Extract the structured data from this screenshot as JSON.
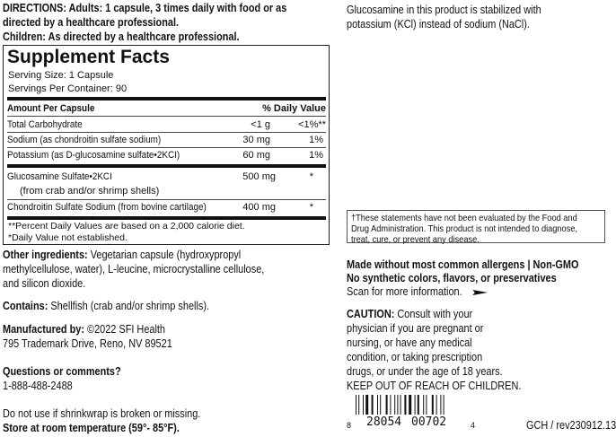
{
  "directions": {
    "line1": "DIRECTIONS: Adults: 1 capsule, 3 times daily with food or as",
    "line2": "directed by a healthcare professional.",
    "line3": "Children: As directed by a healthcare professional."
  },
  "facts": {
    "title": "Supplement Facts",
    "serving_size": "Serving Size: 1 Capsule",
    "servings_per_container": "Servings Per Container: 90",
    "header_amount": "Amount Per Capsule",
    "header_dv": "% Daily Value",
    "rows": [
      {
        "name": "Total Carbohydrate",
        "amount": "<1 g",
        "dv": "<1%**"
      },
      {
        "name": "Sodium (as chondroitin sulfate sodium)",
        "amount": "30 mg",
        "dv": "1%"
      },
      {
        "name": "Potassium (as D-glucosamine sulfate•2KCI)",
        "amount": "60 mg",
        "dv": "1%"
      },
      {
        "name": "Glucosamine Sulfate•2KCI",
        "sub": "(from crab and/or shrimp shells)",
        "amount": "500 mg",
        "dv": "*"
      },
      {
        "name": "Chondroitin Sulfate Sodium (from bovine cartilage)",
        "amount": "400 mg",
        "dv": "*"
      }
    ],
    "footnote1": "**Percent Daily Values are based on a 2,000 calorie diet.",
    "footnote2": "*Daily Value not established."
  },
  "other": {
    "label": "Other ingredients:",
    "line1": " Vegetarian capsule (hydroxypropyl",
    "line2": "methylcellulose, water), L-leucine, microcrystalline cellulose,",
    "line3": "and silicon dioxide."
  },
  "contains": {
    "label": "Contains:",
    "text": " Shellfish (crab and/or shrimp shells)."
  },
  "manufacturer": {
    "label": "Manufactured by:",
    "text": " ©2022 SFI Health",
    "address": "795 Trademark Drive, Reno, NV 89521"
  },
  "questions": {
    "label": "Questions or comments?",
    "phone": "1-888-488-2488"
  },
  "shrinkwrap": "Do not use if shrinkwrap is broken or missing.",
  "storage": "Store at room temperature (59°- 85°F).",
  "glucosamine_note": {
    "line1": "Glucosamine in this product is stabilized with",
    "line2": "potassium (KCl) instead of sodium (NaCl)."
  },
  "fda": {
    "line1": "†These statements have not been evaluated by the Food and",
    "line2": "Drug Administration. This product is not intended to diagnose,",
    "line3": "treat, cure, or prevent any disease."
  },
  "claims": {
    "line1": "Made without most common allergens | Non-GMO",
    "line2": "No synthetic colors, flavors, or preservatives",
    "scan": "Scan for more information.",
    "arrow_icon": "arrow-right-icon"
  },
  "caution": {
    "label": "CAUTION:",
    "line1": " Consult with your",
    "line2": "physician if you are pregnant or",
    "line3": "nursing, or have any medical",
    "line4": "condition, or taking prescription",
    "line5": "drugs, or under the age of 18 years.",
    "line6": "KEEP OUT OF REACH OF CHILDREN."
  },
  "barcode": {
    "first": "8",
    "left": "28054",
    "right": "00702",
    "last": "4"
  },
  "revision": "GCH / rev230912.13"
}
